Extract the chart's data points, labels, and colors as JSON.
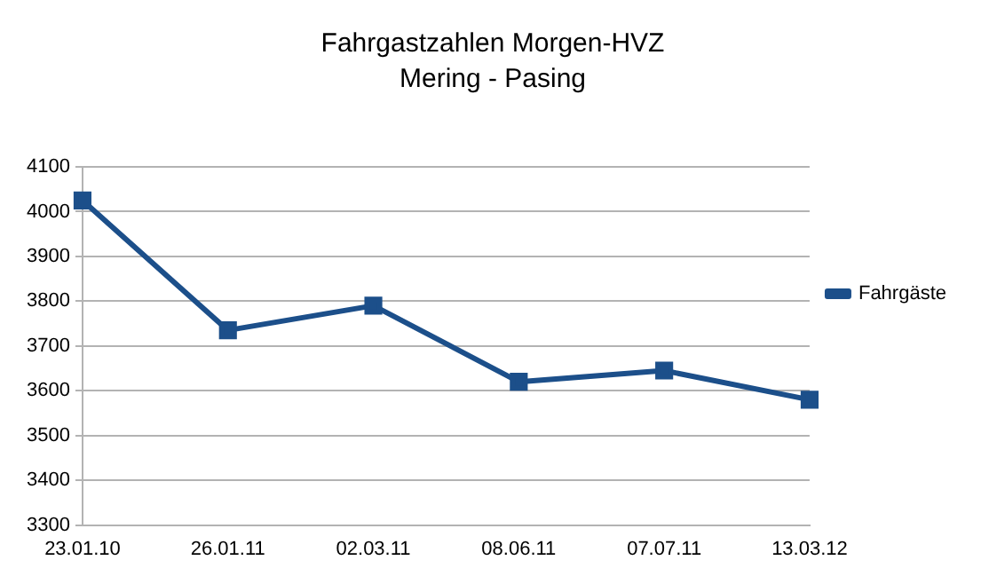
{
  "chart_data": {
    "type": "line",
    "title": "Fahrgastzahlen Morgen-HVZ",
    "subtitle": "Mering - Pasing",
    "categories": [
      "23.01.10",
      "26.01.11",
      "02.03.11",
      "08.06.11",
      "07.07.11",
      "13.03.12"
    ],
    "series": [
      {
        "name": "Fahrgäste",
        "color": "#1c4f8a",
        "values": [
          4025,
          3735,
          3790,
          3620,
          3645,
          3580
        ]
      }
    ],
    "ylim": [
      3300,
      4100
    ],
    "yticks": [
      3300,
      3400,
      3500,
      3600,
      3700,
      3800,
      3900,
      4000,
      4100
    ],
    "grid": "y",
    "legend": "right",
    "marker": "square",
    "line_style": "solid"
  }
}
